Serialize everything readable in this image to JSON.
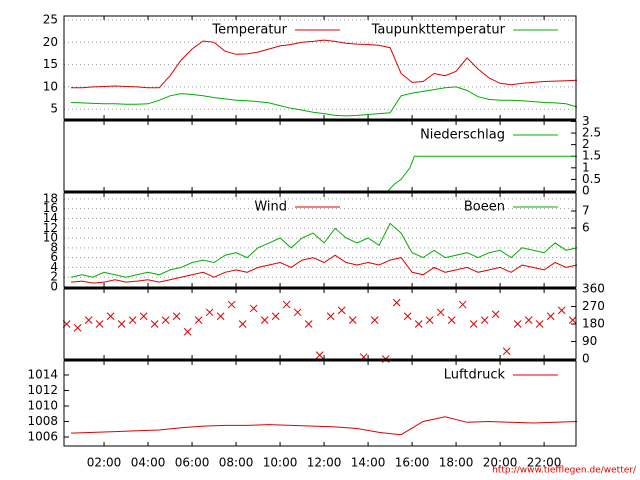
{
  "chart_data": [
    {
      "type": "line",
      "xlim": [
        0.18,
        23.45
      ],
      "ylim": [
        2.8,
        25.9
      ],
      "yticks": [
        5,
        10,
        15,
        20,
        25
      ],
      "grid": true,
      "legend": "top right",
      "x": [
        0.5,
        1,
        1.5,
        2,
        2.5,
        3,
        3.5,
        4,
        4.5,
        5,
        5.5,
        6,
        6.5,
        7,
        7.5,
        8,
        8.5,
        9,
        9.5,
        10,
        10.5,
        11,
        11.5,
        12,
        12.5,
        13,
        13.5,
        14,
        14.5,
        15,
        15.5,
        16,
        16.5,
        17,
        17.5,
        18,
        18.5,
        19,
        19.5,
        20,
        20.5,
        21,
        21.5,
        22,
        22.5,
        23,
        23.5
      ],
      "series": [
        {
          "name": "Temperatur",
          "color": "#e00000",
          "values": [
            9.8,
            9.8,
            10,
            10.1,
            10.2,
            10.1,
            10,
            9.8,
            9.8,
            12.5,
            16,
            18.5,
            20.3,
            20,
            18,
            17.3,
            17.4,
            17.8,
            18.5,
            19.2,
            19.5,
            20,
            20.2,
            20.5,
            20.2,
            19.8,
            19.6,
            19.5,
            19.3,
            18.8,
            13,
            11,
            11.2,
            13,
            12.5,
            13.5,
            16.5,
            14,
            12,
            10.8,
            10.5,
            10.8,
            11,
            11.2,
            11.3,
            11.4,
            11.5
          ]
        },
        {
          "name": "Taupunkttemperatur",
          "color": "#00b000",
          "values": [
            6.5,
            6.4,
            6.3,
            6.2,
            6.2,
            6.1,
            6.1,
            6.2,
            7,
            8,
            8.5,
            8.3,
            8,
            7.6,
            7.3,
            7,
            6.9,
            6.7,
            6.4,
            5.8,
            5.2,
            4.8,
            4.3,
            4,
            3.6,
            3.5,
            3.6,
            3.8,
            4,
            4.2,
            8,
            8.6,
            9,
            9.4,
            9.8,
            10,
            9.2,
            7.8,
            7.2,
            7,
            7,
            6.9,
            6.7,
            6.5,
            6.4,
            6.2,
            5.5
          ]
        }
      ]
    },
    {
      "type": "line",
      "xlim": [
        0.18,
        23.45
      ],
      "y2lim": [
        0,
        3.02
      ],
      "y2ticks": [
        0,
        0.5,
        1,
        1.5,
        2,
        2.5,
        3
      ],
      "grid": false,
      "legend": "top right",
      "x": [
        0.2,
        14.9,
        15.2,
        15.5,
        15.9,
        16.1,
        23.5
      ],
      "series": [
        {
          "name": "Niederschlag",
          "color": "#00b000",
          "axis": "y2",
          "values": [
            0,
            0,
            0.3,
            0.5,
            1,
            1.5,
            1.5
          ]
        }
      ]
    },
    {
      "type": "line",
      "xlim": [
        0.18,
        23.45
      ],
      "ylim": [
        0,
        19.2
      ],
      "yticks": [
        0,
        2,
        4,
        6,
        8,
        10,
        12,
        14,
        16,
        18
      ],
      "y2lim": [
        2.53,
        8.06
      ],
      "y2ticks": [
        6,
        7
      ],
      "grid": true,
      "legend": "top right",
      "x": [
        0.5,
        1,
        1.5,
        2,
        2.5,
        3,
        3.5,
        4,
        4.5,
        5,
        5.5,
        6,
        6.5,
        7,
        7.5,
        8,
        8.5,
        9,
        9.5,
        10,
        10.5,
        11,
        11.5,
        12,
        12.5,
        13,
        13.5,
        14,
        14.5,
        15,
        15.5,
        16,
        16.5,
        17,
        17.5,
        18,
        18.5,
        19,
        19.5,
        20,
        20.5,
        21,
        21.5,
        22,
        22.5,
        23,
        23.5
      ],
      "series": [
        {
          "name": "Wind",
          "color": "#e00000",
          "values": [
            1,
            1.2,
            0.8,
            1,
            1.5,
            1,
            1.2,
            1.5,
            1,
            1.5,
            2,
            2.5,
            3,
            2,
            3,
            3.5,
            3,
            4,
            4.5,
            5,
            4,
            5.5,
            6,
            5,
            6.5,
            5,
            4.5,
            5,
            4.5,
            5.5,
            6,
            3,
            2.5,
            4,
            3,
            3.5,
            4,
            3,
            3.5,
            4,
            3,
            4.5,
            4,
            3.5,
            5,
            4,
            4.5
          ]
        },
        {
          "name": "Boeen",
          "color": "#00b000",
          "values": [
            2,
            2.5,
            2,
            3,
            2.5,
            2,
            2.5,
            3,
            2.5,
            3.5,
            4,
            5,
            5.5,
            5,
            6.5,
            7,
            6,
            8,
            9,
            10,
            8,
            10,
            11,
            9,
            12,
            10,
            9,
            10,
            8.5,
            13,
            11,
            7,
            6,
            7.5,
            6,
            6.5,
            7,
            6,
            7,
            7.5,
            6,
            8,
            7.5,
            7,
            9,
            7.5,
            8
          ]
        }
      ]
    },
    {
      "type": "scatter",
      "xlim": [
        0.18,
        23.45
      ],
      "y2lim": [
        0,
        360
      ],
      "y2ticks": [
        0,
        90,
        180,
        270,
        360
      ],
      "grid": false,
      "x": [
        0.3,
        0.8,
        1.3,
        1.8,
        2.3,
        2.8,
        3.3,
        3.8,
        4.3,
        4.8,
        5.3,
        5.8,
        6.3,
        6.8,
        7.3,
        7.8,
        8.3,
        8.8,
        9.3,
        9.8,
        10.3,
        10.8,
        11.3,
        11.8,
        12.3,
        12.8,
        13.3,
        13.8,
        14.3,
        14.8,
        15.3,
        15.8,
        16.3,
        16.8,
        17.3,
        17.8,
        18.3,
        18.8,
        19.3,
        19.8,
        20.3,
        20.8,
        21.3,
        21.8,
        22.3,
        22.8,
        23.3
      ],
      "series": [
        {
          "color": "#e00000",
          "axis": "y2",
          "values": [
            180,
            160,
            200,
            180,
            220,
            180,
            200,
            220,
            180,
            200,
            220,
            140,
            200,
            240,
            220,
            280,
            180,
            260,
            200,
            220,
            280,
            240,
            180,
            20,
            220,
            250,
            200,
            10,
            200,
            0,
            290,
            220,
            180,
            200,
            240,
            200,
            280,
            180,
            200,
            230,
            40,
            180,
            200,
            180,
            220,
            250,
            200
          ]
        }
      ]
    },
    {
      "type": "line",
      "xlim": [
        0.18,
        23.45
      ],
      "ylim": [
        1004.84,
        1015.8
      ],
      "yticks": [
        1006,
        1008,
        1010,
        1012,
        1014
      ],
      "grid": false,
      "legend": "top right",
      "xticks": [
        {
          "value": 2,
          "label": "02:00"
        },
        {
          "value": 4,
          "label": "04:00"
        },
        {
          "value": 6,
          "label": "06:00"
        },
        {
          "value": 8,
          "label": "08:00"
        },
        {
          "value": 10,
          "label": "10:00"
        },
        {
          "value": 12,
          "label": "12:00"
        },
        {
          "value": 14,
          "label": "14:00"
        },
        {
          "value": 16,
          "label": "16:00"
        },
        {
          "value": 18,
          "label": "18:00"
        },
        {
          "value": 20,
          "label": "20:00"
        },
        {
          "value": 22,
          "label": "22:00"
        }
      ],
      "x": [
        0.5,
        1.5,
        2.5,
        3.5,
        4.5,
        5.5,
        6.5,
        7.5,
        8.5,
        9.5,
        10.5,
        11.5,
        12.5,
        13.5,
        14.5,
        15.5,
        16.5,
        17.5,
        18.5,
        19.5,
        20.5,
        21.5,
        22.5,
        23.5
      ],
      "series": [
        {
          "name": "Luftdruck",
          "color": "#e00000",
          "values": [
            1006.5,
            1006.6,
            1006.7,
            1006.8,
            1006.9,
            1007.2,
            1007.4,
            1007.5,
            1007.5,
            1007.6,
            1007.5,
            1007.4,
            1007.3,
            1007.1,
            1006.6,
            1006.3,
            1008,
            1008.6,
            1007.9,
            1008,
            1007.9,
            1007.8,
            1007.9,
            1008
          ]
        }
      ]
    }
  ],
  "footer": "http://www.tiefflegen.de/wetter/"
}
